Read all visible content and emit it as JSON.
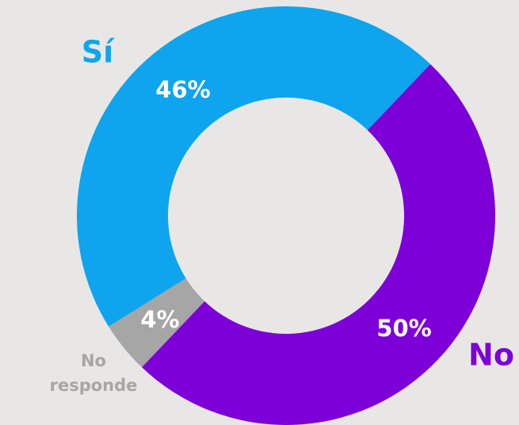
{
  "chart_data": {
    "type": "donut",
    "categories": [
      "No",
      "No responde",
      "Sí"
    ],
    "values": [
      50,
      4,
      46
    ],
    "value_labels": [
      "50%",
      "4%",
      "46%"
    ],
    "colors": [
      "#7e00d9",
      "#a6a6a6",
      "#0ea5ee"
    ]
  }
}
